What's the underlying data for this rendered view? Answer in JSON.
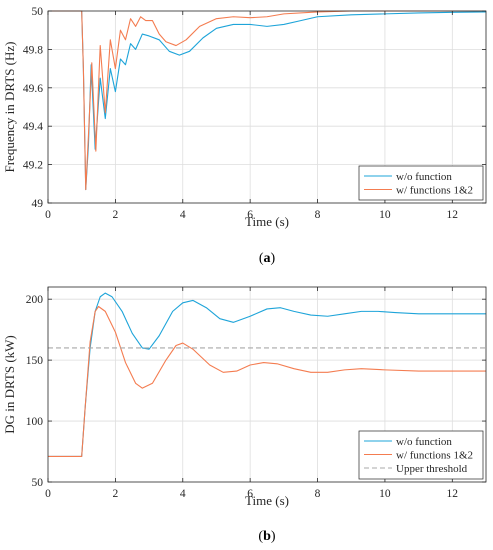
{
  "chart_data": [
    {
      "type": "line",
      "caption": "(a)",
      "xlabel": "Time (s)",
      "ylabel": "Frequency in DRTS (Hz)",
      "xlim": [
        0,
        13
      ],
      "ylim": [
        49,
        50
      ],
      "xticks": [
        0,
        2,
        4,
        6,
        8,
        10,
        12
      ],
      "yticks": [
        49,
        49.2,
        49.4,
        49.6,
        49.8,
        50
      ],
      "ytick_labels": [
        "49",
        "49.2",
        "49.4",
        "49.6",
        "49.8",
        "50"
      ],
      "grid": true,
      "legend_position": "bottom-right",
      "series": [
        {
          "name": "w/o function",
          "color": "#1ea4d9",
          "dashed": false,
          "points": [
            [
              0,
              50
            ],
            [
              1.0,
              50
            ],
            [
              1.05,
              49.7
            ],
            [
              1.12,
              49.07
            ],
            [
              1.2,
              49.3
            ],
            [
              1.28,
              49.72
            ],
            [
              1.4,
              49.28
            ],
            [
              1.55,
              49.65
            ],
            [
              1.7,
              49.44
            ],
            [
              1.85,
              49.7
            ],
            [
              2.0,
              49.58
            ],
            [
              2.15,
              49.75
            ],
            [
              2.3,
              49.72
            ],
            [
              2.45,
              49.83
            ],
            [
              2.6,
              49.8
            ],
            [
              2.8,
              49.88
            ],
            [
              3.0,
              49.87
            ],
            [
              3.3,
              49.85
            ],
            [
              3.6,
              49.79
            ],
            [
              3.9,
              49.77
            ],
            [
              4.2,
              49.79
            ],
            [
              4.6,
              49.86
            ],
            [
              5.0,
              49.91
            ],
            [
              5.5,
              49.93
            ],
            [
              6.0,
              49.93
            ],
            [
              6.5,
              49.92
            ],
            [
              7.0,
              49.93
            ],
            [
              7.5,
              49.95
            ],
            [
              8.0,
              49.97
            ],
            [
              9.0,
              49.98
            ],
            [
              10.0,
              49.985
            ],
            [
              11.0,
              49.99
            ],
            [
              12.0,
              49.993
            ],
            [
              13,
              49.995
            ]
          ]
        },
        {
          "name": "w/ functions 1&2",
          "color": "#f47c50",
          "dashed": false,
          "points": [
            [
              0,
              50
            ],
            [
              1.0,
              50
            ],
            [
              1.05,
              49.7
            ],
            [
              1.12,
              49.07
            ],
            [
              1.2,
              49.35
            ],
            [
              1.3,
              49.73
            ],
            [
              1.42,
              49.27
            ],
            [
              1.55,
              49.82
            ],
            [
              1.7,
              49.47
            ],
            [
              1.85,
              49.85
            ],
            [
              2.0,
              49.7
            ],
            [
              2.15,
              49.9
            ],
            [
              2.3,
              49.85
            ],
            [
              2.45,
              49.96
            ],
            [
              2.6,
              49.92
            ],
            [
              2.75,
              49.97
            ],
            [
              2.9,
              49.95
            ],
            [
              3.1,
              49.95
            ],
            [
              3.3,
              49.88
            ],
            [
              3.5,
              49.84
            ],
            [
              3.8,
              49.82
            ],
            [
              4.1,
              49.85
            ],
            [
              4.5,
              49.92
            ],
            [
              5.0,
              49.96
            ],
            [
              5.5,
              49.97
            ],
            [
              6.0,
              49.965
            ],
            [
              6.5,
              49.97
            ],
            [
              7.0,
              49.985
            ],
            [
              8.0,
              49.995
            ],
            [
              9.0,
              50
            ],
            [
              10.0,
              50
            ],
            [
              11.0,
              50.0
            ],
            [
              13,
              50
            ]
          ]
        }
      ]
    },
    {
      "type": "line",
      "caption": "(b)",
      "xlabel": "Time (s)",
      "ylabel": "DG in DRTS (kW)",
      "xlim": [
        0,
        13
      ],
      "ylim": [
        50,
        210
      ],
      "xticks": [
        0,
        2,
        4,
        6,
        8,
        10,
        12
      ],
      "yticks": [
        50,
        100,
        150,
        200
      ],
      "ytick_labels": [
        "50",
        "100",
        "150",
        "200"
      ],
      "grid": true,
      "legend_position": "bottom-right",
      "series": [
        {
          "name": "w/o function",
          "color": "#1ea4d9",
          "dashed": false,
          "points": [
            [
              0,
              71
            ],
            [
              0.9,
              71
            ],
            [
              1.0,
              71
            ],
            [
              1.1,
              110
            ],
            [
              1.25,
              160
            ],
            [
              1.4,
              190
            ],
            [
              1.55,
              202
            ],
            [
              1.7,
              205
            ],
            [
              1.9,
              202
            ],
            [
              2.2,
              190
            ],
            [
              2.5,
              172
            ],
            [
              2.8,
              160
            ],
            [
              3.0,
              159
            ],
            [
              3.3,
              170
            ],
            [
              3.7,
              190
            ],
            [
              4.0,
              197
            ],
            [
              4.3,
              199
            ],
            [
              4.7,
              193
            ],
            [
              5.1,
              184
            ],
            [
              5.5,
              181
            ],
            [
              6.0,
              186
            ],
            [
              6.5,
              192
            ],
            [
              6.9,
              193
            ],
            [
              7.3,
              190
            ],
            [
              7.8,
              187
            ],
            [
              8.3,
              186
            ],
            [
              8.8,
              188
            ],
            [
              9.3,
              190
            ],
            [
              9.8,
              190
            ],
            [
              10.3,
              189
            ],
            [
              11,
              188
            ],
            [
              12,
              188
            ],
            [
              13,
              188
            ]
          ]
        },
        {
          "name": "w/ functions 1&2",
          "color": "#f47c50",
          "dashed": false,
          "points": [
            [
              0,
              71
            ],
            [
              0.9,
              71
            ],
            [
              1.0,
              71
            ],
            [
              1.1,
              110
            ],
            [
              1.25,
              165
            ],
            [
              1.4,
              190
            ],
            [
              1.5,
              194
            ],
            [
              1.7,
              190
            ],
            [
              2.0,
              173
            ],
            [
              2.3,
              148
            ],
            [
              2.6,
              131
            ],
            [
              2.8,
              127
            ],
            [
              3.1,
              131
            ],
            [
              3.5,
              150
            ],
            [
              3.8,
              162
            ],
            [
              4.0,
              164
            ],
            [
              4.3,
              159
            ],
            [
              4.8,
              146
            ],
            [
              5.2,
              140
            ],
            [
              5.6,
              141
            ],
            [
              6.0,
              146
            ],
            [
              6.4,
              148
            ],
            [
              6.8,
              147
            ],
            [
              7.3,
              143
            ],
            [
              7.8,
              140
            ],
            [
              8.3,
              140
            ],
            [
              8.8,
              142
            ],
            [
              9.3,
              143
            ],
            [
              10.0,
              142
            ],
            [
              11,
              141
            ],
            [
              12,
              141
            ],
            [
              13,
              141
            ]
          ]
        },
        {
          "name": "Upper threshold",
          "color": "#a8a8a8",
          "dashed": true,
          "points": [
            [
              0,
              160
            ],
            [
              13,
              160
            ]
          ]
        }
      ]
    }
  ]
}
